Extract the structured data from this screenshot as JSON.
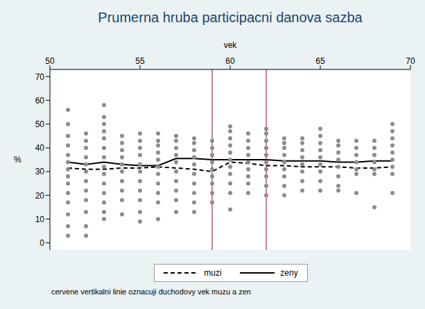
{
  "chart_data": {
    "type": "scatter",
    "title": "Prumerna hruba participacni danova sazba",
    "x_label": "vek",
    "y_label": "%",
    "xlim": [
      50,
      70
    ],
    "xticks": [
      50,
      55,
      60,
      65,
      70
    ],
    "ylim": [
      -3,
      73
    ],
    "yticks": [
      0,
      10,
      20,
      30,
      40,
      50,
      60,
      70
    ],
    "grid": false,
    "legend": "bottom",
    "annotation": "cervene vertikalni linie oznacuji duchodovy vek muzu a zen",
    "x": [
      51,
      52,
      53,
      54,
      55,
      56,
      57,
      58,
      59,
      60,
      61,
      62,
      63,
      64,
      65,
      66,
      67,
      68,
      69
    ],
    "series": [
      {
        "name": "muzi",
        "type": "line",
        "color": "#000000",
        "line_style": "dashed",
        "values": [
          31.5,
          31,
          31,
          31.5,
          31.5,
          32,
          31.5,
          31,
          30,
          34,
          33.5,
          32.5,
          32.5,
          32,
          32,
          32,
          31.5,
          31.5,
          32
        ]
      },
      {
        "name": "zeny",
        "type": "line",
        "color": "#000000",
        "line_style": "solid",
        "values": [
          34,
          33,
          34,
          33,
          32.5,
          32.5,
          35.5,
          35.5,
          35,
          35,
          35,
          35,
          34.5,
          34.5,
          34.5,
          34,
          34,
          34.5,
          34.5
        ]
      }
    ],
    "points": {
      "type": "scatter",
      "marker": "circle",
      "color": "#8c8c8c",
      "groups": [
        {
          "x": 51,
          "values": [
            3,
            7,
            12,
            17,
            21,
            25,
            28,
            31,
            34,
            37,
            41,
            45,
            50,
            56
          ]
        },
        {
          "x": 52,
          "values": [
            3,
            7,
            13,
            18,
            22,
            26,
            30,
            33,
            36,
            40,
            43,
            46
          ]
        },
        {
          "x": 53,
          "values": [
            10,
            13,
            17,
            21,
            25,
            29,
            32,
            36,
            40,
            44,
            47,
            50,
            53,
            58
          ]
        },
        {
          "x": 54,
          "values": [
            12,
            18,
            22,
            26,
            30,
            33,
            36,
            39,
            42,
            45
          ]
        },
        {
          "x": 55,
          "values": [
            9,
            13,
            18,
            22,
            26,
            30,
            33,
            37,
            40,
            43,
            46
          ]
        },
        {
          "x": 56,
          "values": [
            10,
            17,
            21,
            25,
            29,
            32,
            35,
            38,
            41,
            43,
            46
          ]
        },
        {
          "x": 57,
          "values": [
            13,
            18,
            22,
            26,
            30,
            34,
            37,
            40,
            43,
            45
          ]
        },
        {
          "x": 58,
          "values": [
            13,
            17,
            21,
            25,
            29,
            33,
            36,
            39,
            42,
            44
          ]
        },
        {
          "x": 59,
          "values": [
            17,
            21,
            25,
            28,
            31,
            34,
            37,
            40,
            43
          ]
        },
        {
          "x": 60,
          "values": [
            14,
            21,
            25,
            29,
            32,
            35,
            38,
            41,
            44,
            47,
            49
          ]
        },
        {
          "x": 61,
          "values": [
            21,
            25,
            28,
            31,
            34,
            37,
            40,
            43,
            46
          ]
        },
        {
          "x": 62,
          "values": [
            20,
            24,
            28,
            31,
            34,
            37,
            40,
            43,
            46,
            48
          ]
        },
        {
          "x": 63,
          "values": [
            20,
            24,
            28,
            31,
            34,
            37,
            40,
            42,
            44
          ]
        },
        {
          "x": 64,
          "values": [
            22,
            26,
            30,
            33,
            36,
            39,
            42,
            44
          ]
        },
        {
          "x": 65,
          "values": [
            22,
            26,
            30,
            33,
            36,
            39,
            42,
            45,
            48
          ]
        },
        {
          "x": 66,
          "values": [
            22,
            24,
            28,
            32,
            35,
            38,
            41,
            43
          ]
        },
        {
          "x": 67,
          "values": [
            21,
            29,
            31,
            34,
            37,
            40,
            43
          ]
        },
        {
          "x": 68,
          "values": [
            15,
            29,
            31,
            34,
            37,
            40,
            43
          ]
        },
        {
          "x": 69,
          "values": [
            21,
            29,
            32,
            35,
            38,
            41,
            44,
            47,
            50
          ]
        }
      ]
    },
    "vertical_lines": {
      "x": [
        59,
        62
      ],
      "color": "#990033"
    }
  }
}
